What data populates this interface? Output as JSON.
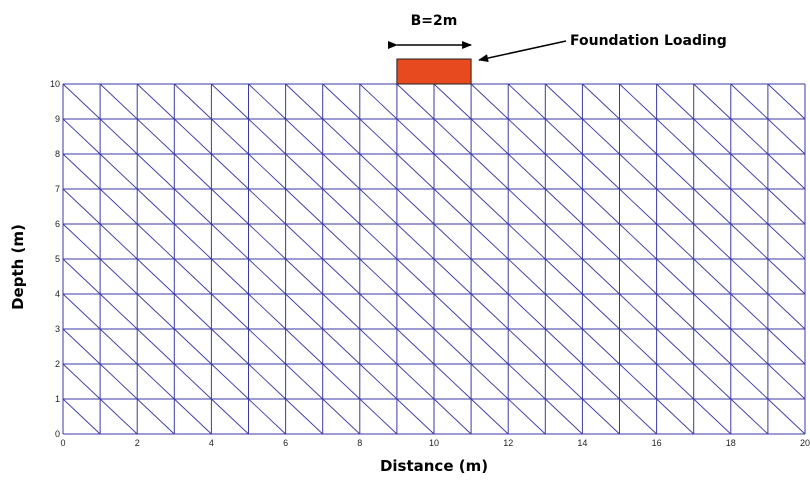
{
  "diagram": {
    "type": "finite-element-mesh",
    "x_range": [
      0,
      20
    ],
    "y_range": [
      0,
      10
    ],
    "cell_size": 1,
    "diagonal": "top-left-to-bottom-right",
    "mesh_color": "#3a3aa6",
    "xlabel": "Distance (m)",
    "ylabel": "Depth (m)",
    "x_ticks": [
      "0",
      "2",
      "4",
      "6",
      "8",
      "10",
      "12",
      "14",
      "16",
      "18",
      "20"
    ],
    "y_ticks": [
      "0",
      "1",
      "2",
      "3",
      "4",
      "5",
      "6",
      "7",
      "8",
      "9",
      "10"
    ],
    "foundation": {
      "x_from": 9,
      "x_to": 11,
      "color": "#e84a1f",
      "width_label": "B=2m",
      "label": "Foundation Loading"
    }
  }
}
